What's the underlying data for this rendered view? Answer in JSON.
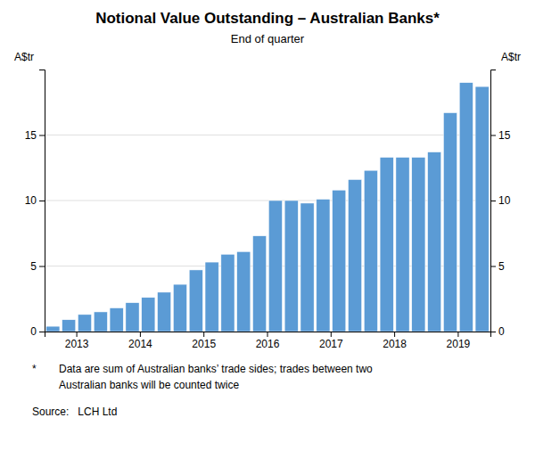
{
  "chart_data": {
    "type": "bar",
    "title": "Notional Value Outstanding – Australian Banks*",
    "subtitle": "End of quarter",
    "ylabel": "A$tr",
    "y2label": "A$tr",
    "footnote_marker": "*",
    "footnotes": [
      "Data are sum of Australian banks’ trade sides; trades between two",
      "Australian banks will be counted twice"
    ],
    "source": "Source:   LCH Ltd",
    "color": "#5B9BD5",
    "categories": [
      null,
      null,
      "2013",
      null,
      null,
      null,
      "2014",
      null,
      null,
      null,
      "2015",
      null,
      null,
      null,
      "2016",
      null,
      null,
      null,
      "2017",
      null,
      null,
      null,
      "2018",
      null,
      null,
      null,
      "2019",
      null
    ],
    "values": [
      0.4,
      0.9,
      1.3,
      1.5,
      1.8,
      2.2,
      2.6,
      3.0,
      3.6,
      4.7,
      5.3,
      5.9,
      6.1,
      7.3,
      10.0,
      10.0,
      9.8,
      10.1,
      10.8,
      11.6,
      12.3,
      13.3,
      13.3,
      13.3,
      13.7,
      16.7,
      19.0,
      18.7
    ],
    "ylim": [
      0,
      20
    ],
    "yticks": [
      0,
      5,
      10,
      15
    ],
    "y2lim": [
      0,
      20
    ],
    "y2ticks": [
      0,
      5,
      10,
      15
    ],
    "grid": true
  }
}
